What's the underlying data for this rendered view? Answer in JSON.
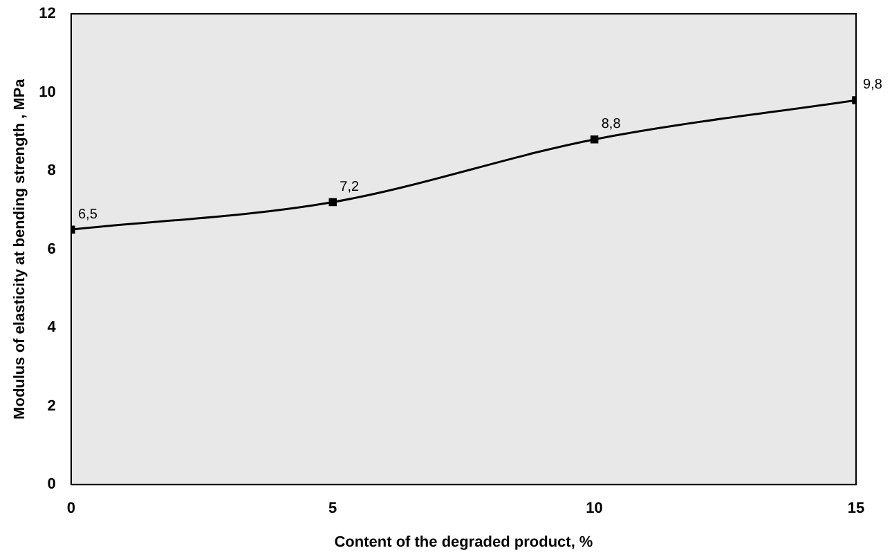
{
  "chart_data": {
    "type": "line",
    "xlabel": "Content of the degraded product, %",
    "ylabel": "Modulus of elasticity at bending strength , MPa",
    "x": [
      0,
      5,
      10,
      15
    ],
    "series": [
      {
        "color": "#000000",
        "values": [
          6.5,
          7.2,
          8.8,
          9.8
        ],
        "value_labels": [
          "6,5",
          "7,2",
          "8,8",
          "9,8"
        ]
      }
    ],
    "xlim": [
      0,
      15
    ],
    "xticks": [
      0,
      5,
      10,
      15
    ],
    "ylim": [
      0,
      12
    ],
    "yticks": [
      0,
      2,
      4,
      6,
      8,
      10,
      12
    ],
    "grid": false,
    "legend": false,
    "marker": "square",
    "line_style": "solid"
  }
}
